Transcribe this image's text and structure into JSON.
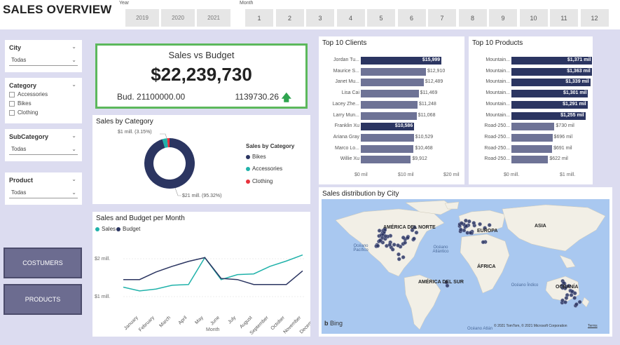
{
  "header": {
    "title": "SALES OVERVIEW",
    "year_label": "Year",
    "years": [
      "2019",
      "2020",
      "2021"
    ],
    "month_label": "Month",
    "months": [
      "1",
      "2",
      "3",
      "4",
      "5",
      "6",
      "7",
      "8",
      "9",
      "10",
      "11",
      "12"
    ]
  },
  "filters": {
    "city": {
      "title": "City",
      "value": "Todas"
    },
    "category": {
      "title": "Category",
      "options": [
        "Accessories",
        "Bikes",
        "Clothing"
      ]
    },
    "subcategory": {
      "title": "SubCategory",
      "value": "Todas"
    },
    "product": {
      "title": "Product",
      "value": "Todas"
    }
  },
  "nav": {
    "customers_label": "COSTUMERS",
    "products_label": "PRODUCTS"
  },
  "kpi": {
    "title": "Sales vs Budget",
    "value": "$22,239,730",
    "budget_text": "Bud. 21100000.00",
    "diff_text": "1139730.26",
    "arrow": "🡅",
    "border_color": "#5cb85c"
  },
  "sales_by_category": {
    "title": "Sales by Category",
    "legend_title": "Sales by Category",
    "label_small": "$1 mill. (3.15%)",
    "label_big": "$21 mill. (95.32%)",
    "colors": {
      "Bikes": "#2b3561",
      "Accessories": "#20b2aa",
      "Clothing": "#e8323c"
    }
  },
  "sales_budget_month": {
    "title": "Sales and Budget per Month",
    "legend_sales": "Sales",
    "legend_budget": "Budget",
    "y_top": "$2 mill.",
    "y_bottom": "$1 mill.",
    "x_title": "Month"
  },
  "top_clients": {
    "title": "Top 10 Clients",
    "x_ticks": [
      "$0 mil",
      "$10 mil",
      "$20 mil"
    ]
  },
  "top_products": {
    "title": "Top 10 Products",
    "x_ticks": [
      "$0 mill.",
      "$1 mill."
    ]
  },
  "map": {
    "title": "Sales distribution by City",
    "labels": {
      "north_america": "AMÉRICA DEL NORTE",
      "europe": "EUROPA",
      "asia": "ASIA",
      "africa": "ÁFRICA",
      "south_america": "AMÉRICA DEL SUR",
      "oceania": "OCEANÍA",
      "pacific": "Océano Pacífico",
      "atlantic": "Océano Atlántico",
      "indian": "Océano Índico",
      "atlantic_bottom": "Océano Atlán",
      "bing": "Bing",
      "copyright": "© 2021 TomTom, © 2021 Microsoft Corporation",
      "terms": "Terms"
    }
  },
  "chart_data": [
    {
      "type": "pie",
      "title": "Sales by Category",
      "categories": [
        "Bikes",
        "Accessories",
        "Clothing"
      ],
      "values": [
        95.32,
        3.15,
        1.53
      ],
      "value_labels": [
        "$21 mill. (95.32%)",
        "$1 mill. (3.15%)",
        ""
      ]
    },
    {
      "type": "line",
      "title": "Sales and Budget per Month",
      "categories": [
        "January",
        "February",
        "March",
        "April",
        "May",
        "June",
        "July",
        "August",
        "September",
        "October",
        "November",
        "December"
      ],
      "series": [
        {
          "name": "Sales",
          "color": "#20b2aa",
          "values": [
            1.25,
            1.15,
            1.2,
            1.3,
            1.32,
            2.03,
            1.45,
            1.58,
            1.6,
            1.8,
            1.94,
            2.1
          ]
        },
        {
          "name": "Budget",
          "color": "#2b3561",
          "values": [
            1.45,
            1.45,
            1.65,
            1.8,
            1.93,
            2.03,
            1.48,
            1.45,
            1.32,
            1.32,
            1.32,
            1.68
          ]
        }
      ],
      "ylabel": "",
      "xlabel": "Month"
    },
    {
      "type": "bar",
      "title": "Top 10 Clients",
      "categories": [
        "Jordan Tu...",
        "Maurice S...",
        "Janet Mu...",
        "Lisa Cai",
        "Lacey Zhe...",
        "Larry Mun...",
        "Franklin Xu",
        "Ariana Gray",
        "Marco Lo...",
        "Willie Xu"
      ],
      "values": [
        15999,
        12910,
        12489,
        11469,
        11248,
        11068,
        10586,
        10529,
        10468,
        9912
      ],
      "labels": [
        "$15,999",
        "$12,910",
        "$12,489",
        "$11,469",
        "$11,248",
        "$11,068",
        "$10,586",
        "$10,529",
        "$10,468",
        "$9,912"
      ],
      "highlight_color": "#2b3561",
      "color": "#6e7396",
      "xlim": [
        0,
        20000
      ]
    },
    {
      "type": "bar",
      "title": "Top 10 Products",
      "categories": [
        "Mountain...",
        "Mountain...",
        "Mountain...",
        "Mountain...",
        "Mountain...",
        "Mountain...",
        "Road-250...",
        "Road-250...",
        "Road-250...",
        "Road-250..."
      ],
      "values": [
        1.371,
        1.363,
        1.339,
        1.301,
        1.291,
        1.255,
        0.73,
        0.696,
        0.691,
        0.622
      ],
      "labels": [
        "$1,371 mil",
        "$1,363 mil",
        "$1,339 mil",
        "$1,301 mil",
        "$1,291 mil",
        "$1,255 mil",
        "$730 mil",
        "$696 mil",
        "$691 mil",
        "$622 mil"
      ],
      "highlight_color": "#2b3561",
      "color": "#6e7396",
      "xlim": [
        0,
        1.45
      ]
    }
  ]
}
